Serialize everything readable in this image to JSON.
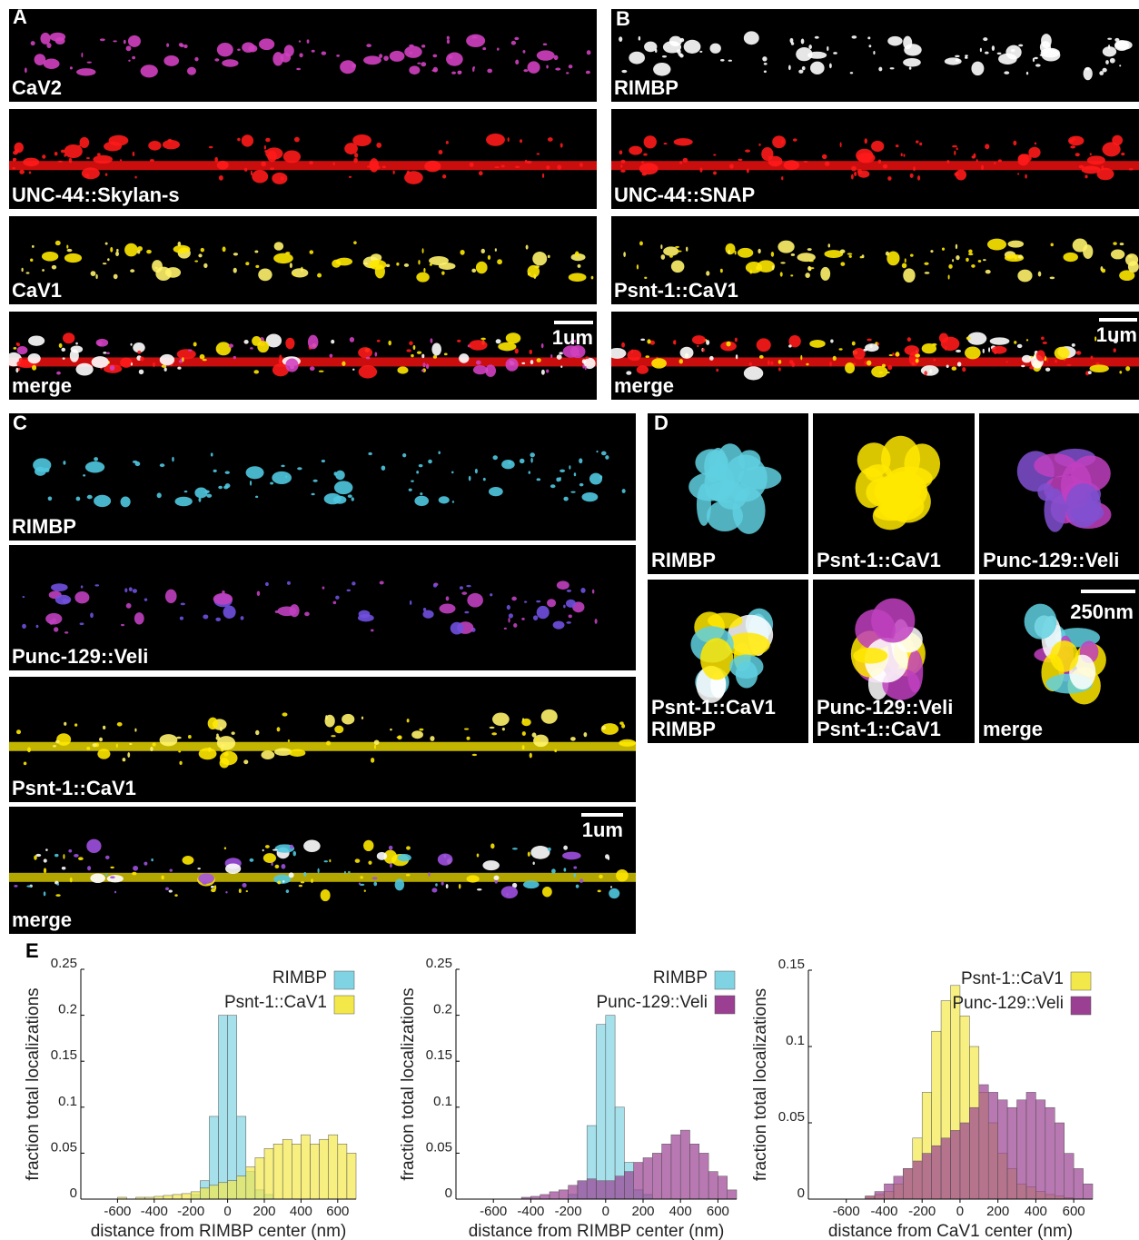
{
  "panels": {
    "A": {
      "label": "A",
      "rows": [
        "CaV2",
        "UNC-44::Skylan-s",
        "CaV1",
        "merge"
      ],
      "scale": "1um"
    },
    "B": {
      "label": "B",
      "rows": [
        "RIMBP",
        "UNC-44::SNAP",
        "Psnt-1::CaV1",
        "merge"
      ],
      "scale": "1um"
    },
    "C": {
      "label": "C",
      "rows": [
        "RIMBP",
        "Punc-129::Veli",
        "Psnt-1::CaV1",
        "merge"
      ],
      "scale": "1um"
    },
    "D": {
      "label": "D",
      "cells": [
        [
          "RIMBP"
        ],
        [
          "Psnt-1::CaV1"
        ],
        [
          "Punc-129::Veli"
        ],
        [
          "Psnt-1::CaV1",
          "RIMBP"
        ],
        [
          "Punc-129::Veli",
          "Psnt-1::CaV1"
        ],
        [
          "merge"
        ]
      ],
      "scale": "250nm"
    },
    "E": {
      "label": "E"
    }
  },
  "chart_data": [
    {
      "type": "histogram",
      "xlabel": "distance from RIMBP center (nm)",
      "ylabel": "fraction total localizations",
      "xlim": [
        -800,
        700
      ],
      "ylim": [
        0,
        0.25
      ],
      "xticks": [
        -600,
        -400,
        -200,
        0,
        200,
        400,
        600
      ],
      "yticks": [
        0,
        0.05,
        0.1,
        0.15,
        0.2,
        0.25
      ],
      "legend": "top-right",
      "bins": [
        -700,
        -650,
        -600,
        -550,
        -500,
        -450,
        -400,
        -350,
        -300,
        -250,
        -200,
        -150,
        -100,
        -50,
        0,
        50,
        100,
        150,
        200,
        250,
        300,
        350,
        400,
        450,
        500,
        550,
        600,
        650,
        700
      ],
      "series": [
        {
          "name": "RIMBP",
          "color": "#7fd3e3",
          "values": [
            0,
            0,
            0,
            0,
            0,
            0,
            0,
            0,
            0,
            0,
            0.005,
            0.02,
            0.09,
            0.2,
            0.2,
            0.09,
            0.03,
            0.01,
            0.005,
            0,
            0,
            0,
            0,
            0,
            0,
            0,
            0,
            0
          ]
        },
        {
          "name": "Psnt-1::CaV1",
          "color": "#f3e84a",
          "values": [
            0,
            0,
            0.002,
            0,
            0.002,
            0.002,
            0.003,
            0.004,
            0.005,
            0.006,
            0.008,
            0.012,
            0.015,
            0.018,
            0.02,
            0.025,
            0.035,
            0.045,
            0.055,
            0.06,
            0.065,
            0.06,
            0.07,
            0.06,
            0.065,
            0.07,
            0.06,
            0.05
          ]
        }
      ]
    },
    {
      "type": "histogram",
      "xlabel": "distance from RIMBP center (nm)",
      "ylabel": "fraction total localizations",
      "xlim": [
        -800,
        700
      ],
      "ylim": [
        0,
        0.25
      ],
      "xticks": [
        -600,
        -400,
        -200,
        0,
        200,
        400,
        600
      ],
      "yticks": [
        0,
        0.05,
        0.1,
        0.15,
        0.2,
        0.25
      ],
      "legend": "top-right",
      "bins": [
        -700,
        -650,
        -600,
        -550,
        -500,
        -450,
        -400,
        -350,
        -300,
        -250,
        -200,
        -150,
        -100,
        -50,
        0,
        50,
        100,
        150,
        200,
        250,
        300,
        350,
        400,
        450,
        500,
        550,
        600,
        650,
        700
      ],
      "series": [
        {
          "name": "RIMBP",
          "color": "#7fd3e3",
          "values": [
            0,
            0,
            0,
            0,
            0,
            0,
            0,
            0,
            0,
            0,
            0.005,
            0.02,
            0.08,
            0.19,
            0.2,
            0.1,
            0.04,
            0.01,
            0.005,
            0,
            0,
            0,
            0,
            0,
            0,
            0,
            0,
            0
          ]
        },
        {
          "name": "Punc-129::Veli",
          "color": "#9a3f92",
          "values": [
            0,
            0,
            0,
            0,
            0,
            0.002,
            0.003,
            0.005,
            0.008,
            0.01,
            0.015,
            0.02,
            0.022,
            0.02,
            0.02,
            0.025,
            0.03,
            0.04,
            0.045,
            0.05,
            0.06,
            0.07,
            0.075,
            0.06,
            0.05,
            0.03,
            0.025,
            0.01
          ]
        }
      ]
    },
    {
      "type": "histogram",
      "xlabel": "distance from CaV1 center (nm)",
      "ylabel": "fraction total localizations",
      "xlim": [
        -800,
        700
      ],
      "ylim": [
        0,
        0.15
      ],
      "xticks": [
        -600,
        -400,
        -200,
        0,
        200,
        400,
        600
      ],
      "yticks": [
        0,
        0.05,
        0.1,
        0.15
      ],
      "legend": "top-right",
      "bins": [
        -700,
        -650,
        -600,
        -550,
        -500,
        -450,
        -400,
        -350,
        -300,
        -250,
        -200,
        -150,
        -100,
        -50,
        0,
        50,
        100,
        150,
        200,
        250,
        300,
        350,
        400,
        450,
        500,
        550,
        600,
        650,
        700
      ],
      "series": [
        {
          "name": "Psnt-1::CaV1",
          "color": "#f3e84a",
          "values": [
            0,
            0,
            0,
            0,
            0.002,
            0.003,
            0.005,
            0.01,
            0.02,
            0.04,
            0.07,
            0.11,
            0.13,
            0.14,
            0.12,
            0.1,
            0.07,
            0.05,
            0.03,
            0.02,
            0.01,
            0.008,
            0.005,
            0.003,
            0.002,
            0.001,
            0,
            0
          ]
        },
        {
          "name": "Punc-129::Veli",
          "color": "#9a3f92",
          "values": [
            0,
            0,
            0,
            0,
            0.002,
            0.005,
            0.01,
            0.015,
            0.02,
            0.025,
            0.03,
            0.035,
            0.04,
            0.045,
            0.05,
            0.06,
            0.075,
            0.07,
            0.065,
            0.06,
            0.065,
            0.07,
            0.065,
            0.06,
            0.05,
            0.03,
            0.02,
            0.01
          ]
        }
      ]
    }
  ]
}
